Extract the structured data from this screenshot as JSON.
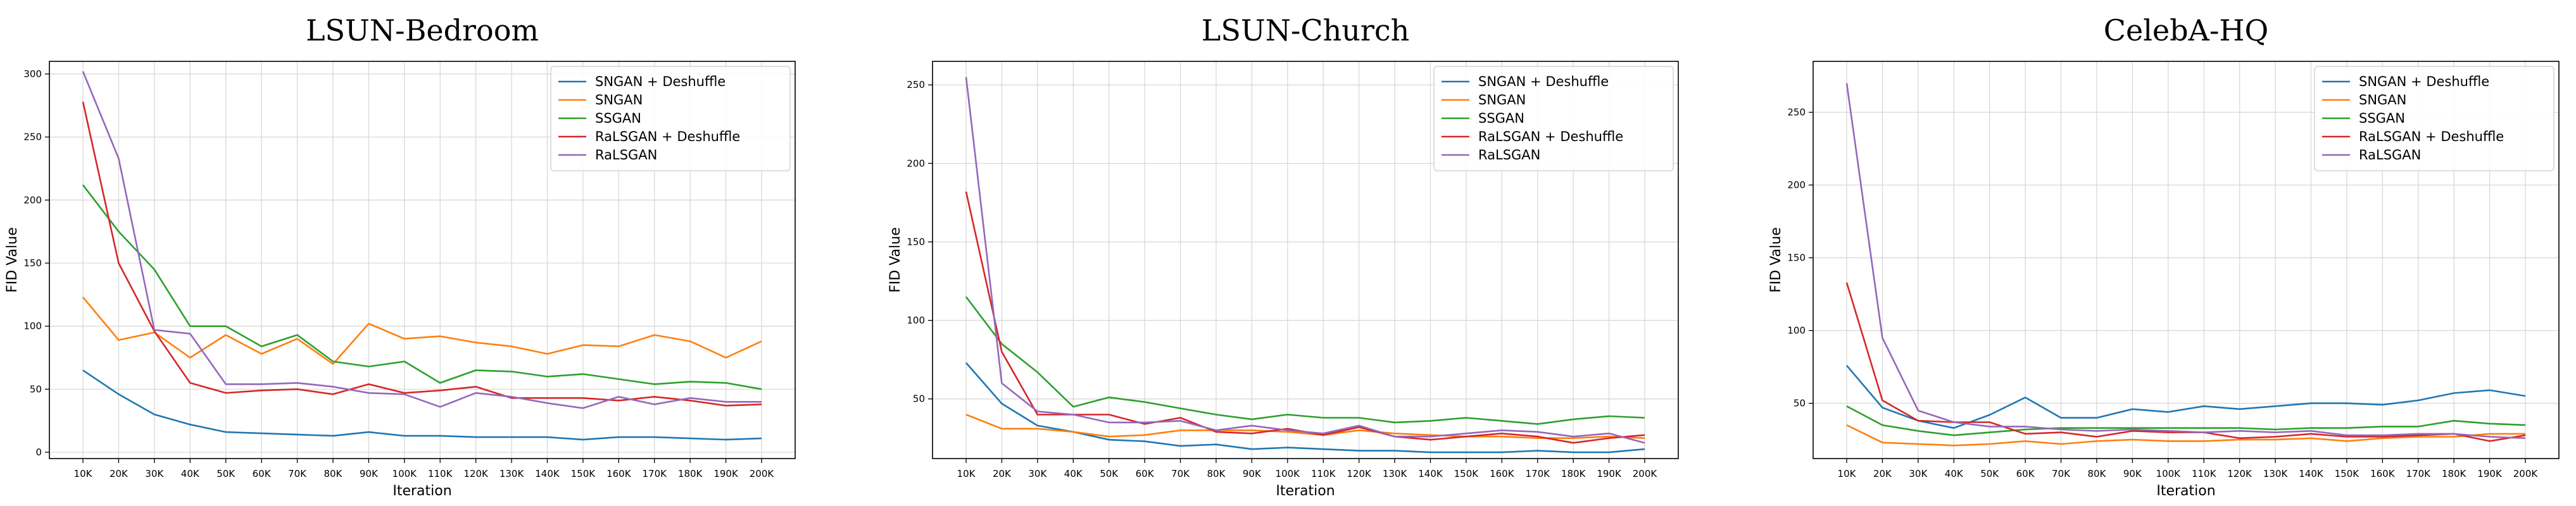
{
  "chart_data": [
    {
      "type": "line",
      "title": "LSUN-Bedroom",
      "xlabel": "Iteration",
      "ylabel": "FID Value",
      "categories": [
        "10K",
        "20K",
        "30K",
        "40K",
        "50K",
        "60K",
        "70K",
        "80K",
        "90K",
        "100K",
        "110K",
        "120K",
        "130K",
        "140K",
        "150K",
        "160K",
        "170K",
        "180K",
        "190K",
        "200K"
      ],
      "ylim": [
        -5,
        310
      ],
      "yticks": [
        0,
        50,
        100,
        150,
        200,
        250,
        300
      ],
      "grid": true,
      "legend": "top-right",
      "series": [
        {
          "name": "SNGAN + Deshuffle",
          "color": "#1f77b4",
          "values": [
            65,
            46,
            30,
            22,
            16,
            15,
            14,
            13,
            16,
            13,
            13,
            12,
            12,
            12,
            10,
            12,
            12,
            11,
            10,
            11
          ]
        },
        {
          "name": "SNGAN",
          "color": "#ff7f0e",
          "values": [
            123,
            89,
            95,
            75,
            93,
            78,
            90,
            70,
            102,
            90,
            92,
            87,
            84,
            78,
            85,
            84,
            93,
            88,
            75,
            88
          ]
        },
        {
          "name": "SSGAN",
          "color": "#2ca02c",
          "values": [
            212,
            175,
            145,
            100,
            100,
            84,
            93,
            72,
            68,
            72,
            55,
            65,
            64,
            60,
            62,
            58,
            54,
            56,
            55,
            50
          ]
        },
        {
          "name": "RaLSGAN + Deshuffle",
          "color": "#d62728",
          "values": [
            278,
            150,
            96,
            55,
            47,
            49,
            50,
            46,
            54,
            47,
            49,
            52,
            43,
            43,
            43,
            41,
            44,
            41,
            37,
            38
          ]
        },
        {
          "name": "RaLSGAN",
          "color": "#9467bd",
          "values": [
            302,
            233,
            97,
            94,
            54,
            54,
            55,
            52,
            47,
            46,
            36,
            47,
            44,
            39,
            35,
            44,
            38,
            43,
            40,
            40
          ]
        }
      ]
    },
    {
      "type": "line",
      "title": "LSUN-Church",
      "xlabel": "Iteration",
      "ylabel": "FID Value",
      "categories": [
        "10K",
        "20K",
        "30K",
        "40K",
        "50K",
        "60K",
        "70K",
        "80K",
        "90K",
        "100K",
        "110K",
        "120K",
        "130K",
        "140K",
        "150K",
        "160K",
        "170K",
        "180K",
        "190K",
        "200K"
      ],
      "ylim": [
        12,
        265
      ],
      "yticks": [
        50,
        100,
        150,
        200,
        250
      ],
      "grid": true,
      "legend": "top-right",
      "series": [
        {
          "name": "SNGAN + Deshuffle",
          "color": "#1f77b4",
          "values": [
            73,
            47,
            33,
            29,
            24,
            23,
            20,
            21,
            18,
            19,
            18,
            17,
            17,
            16,
            16,
            16,
            17,
            16,
            16,
            18
          ]
        },
        {
          "name": "SNGAN",
          "color": "#ff7f0e",
          "values": [
            40,
            31,
            31,
            29,
            26,
            27,
            30,
            30,
            30,
            29,
            27,
            30,
            28,
            27,
            26,
            26,
            25,
            25,
            26,
            25
          ]
        },
        {
          "name": "SSGAN",
          "color": "#2ca02c",
          "values": [
            115,
            85,
            67,
            45,
            51,
            48,
            44,
            40,
            37,
            40,
            38,
            38,
            35,
            36,
            38,
            36,
            34,
            37,
            39,
            38
          ]
        },
        {
          "name": "RaLSGAN + Deshuffle",
          "color": "#d62728",
          "values": [
            182,
            80,
            40,
            40,
            40,
            34,
            38,
            29,
            28,
            31,
            27,
            32,
            26,
            24,
            26,
            28,
            26,
            22,
            25,
            27
          ]
        },
        {
          "name": "RaLSGAN",
          "color": "#9467bd",
          "values": [
            255,
            60,
            42,
            40,
            35,
            35,
            36,
            30,
            33,
            30,
            28,
            33,
            26,
            26,
            28,
            30,
            29,
            26,
            28,
            22
          ]
        }
      ]
    },
    {
      "type": "line",
      "title": "CelebA-HQ",
      "xlabel": "Iteration",
      "ylabel": "FID Value",
      "categories": [
        "10K",
        "20K",
        "30K",
        "40K",
        "50K",
        "60K",
        "70K",
        "80K",
        "90K",
        "100K",
        "110K",
        "120K",
        "130K",
        "140K",
        "150K",
        "160K",
        "170K",
        "180K",
        "190K",
        "200K"
      ],
      "ylim": [
        12,
        285
      ],
      "yticks": [
        50,
        100,
        150,
        200,
        250
      ],
      "grid": true,
      "legend": "top-right",
      "series": [
        {
          "name": "SNGAN + Deshuffle",
          "color": "#1f77b4",
          "values": [
            76,
            47,
            38,
            33,
            42,
            54,
            40,
            40,
            46,
            44,
            48,
            46,
            48,
            50,
            50,
            49,
            52,
            57,
            59,
            55
          ]
        },
        {
          "name": "SNGAN",
          "color": "#ff7f0e",
          "values": [
            35,
            23,
            22,
            21,
            22,
            24,
            22,
            24,
            25,
            24,
            24,
            25,
            25,
            26,
            24,
            26,
            27,
            27,
            29,
            29
          ]
        },
        {
          "name": "SSGAN",
          "color": "#2ca02c",
          "values": [
            48,
            35,
            31,
            28,
            30,
            32,
            33,
            33,
            33,
            33,
            33,
            33,
            32,
            33,
            33,
            34,
            34,
            38,
            36,
            35
          ]
        },
        {
          "name": "RaLSGAN + Deshuffle",
          "color": "#d62728",
          "values": [
            133,
            52,
            38,
            37,
            37,
            29,
            30,
            27,
            31,
            30,
            30,
            26,
            27,
            29,
            27,
            27,
            28,
            29,
            24,
            28
          ]
        },
        {
          "name": "RaLSGAN",
          "color": "#9467bd",
          "values": [
            270,
            95,
            45,
            37,
            34,
            34,
            32,
            31,
            32,
            31,
            30,
            31,
            30,
            31,
            28,
            28,
            29,
            29,
            27,
            26
          ]
        }
      ]
    }
  ]
}
